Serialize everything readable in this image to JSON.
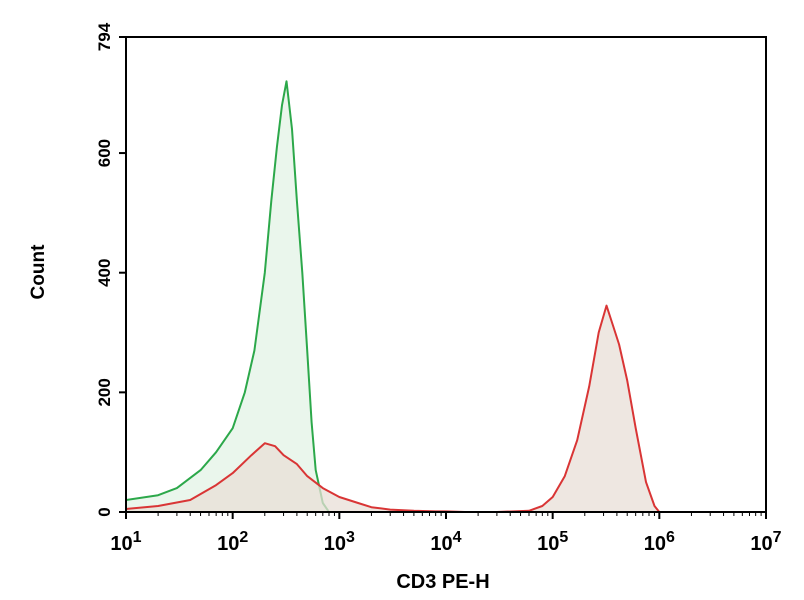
{
  "chart_data": {
    "type": "area",
    "xlabel": "CD3 PE-H",
    "ylabel": "Count",
    "x_scale": "log",
    "xlim": [
      10,
      10000000
    ],
    "ylim": [
      0,
      794
    ],
    "x_ticks": [
      {
        "value": 10,
        "base": "10",
        "exp": "1"
      },
      {
        "value": 100,
        "base": "10",
        "exp": "2"
      },
      {
        "value": 1000,
        "base": "10",
        "exp": "3"
      },
      {
        "value": 10000,
        "base": "10",
        "exp": "4"
      },
      {
        "value": 100000,
        "base": "10",
        "exp": "5"
      },
      {
        "value": 1000000,
        "base": "10",
        "exp": "6"
      },
      {
        "value": 10000000,
        "base": "10",
        "exp": "7"
      }
    ],
    "y_ticks": [
      "0",
      "200",
      "400",
      "600",
      "794"
    ],
    "grid": false,
    "series": [
      {
        "color": "#2ca84a",
        "fill": "#e3f3e6",
        "x": [
          10,
          20,
          30,
          50,
          70,
          100,
          130,
          160,
          200,
          230,
          260,
          290,
          320,
          360,
          400,
          450,
          500,
          550,
          600,
          700,
          800
        ],
        "y": [
          20,
          28,
          40,
          70,
          100,
          140,
          200,
          270,
          400,
          520,
          610,
          680,
          720,
          640,
          520,
          400,
          270,
          150,
          70,
          15,
          0
        ]
      },
      {
        "color": "#d93535",
        "fill": "#e8dfd7",
        "x": [
          10,
          20,
          40,
          70,
          100,
          150,
          200,
          250,
          300,
          400,
          500,
          700,
          1000,
          1500,
          2000,
          3000,
          5000,
          8000,
          10000,
          15000,
          30000,
          60000,
          80000,
          100000,
          130000,
          170000,
          220000,
          270000,
          320000,
          370000,
          420000,
          500000,
          600000,
          750000,
          900000,
          1000000
        ],
        "y": [
          5,
          10,
          20,
          45,
          65,
          95,
          115,
          110,
          95,
          80,
          60,
          40,
          25,
          15,
          8,
          4,
          2,
          1,
          1,
          0,
          0,
          2,
          10,
          25,
          60,
          120,
          210,
          300,
          345,
          310,
          280,
          220,
          140,
          50,
          10,
          0
        ]
      }
    ]
  }
}
